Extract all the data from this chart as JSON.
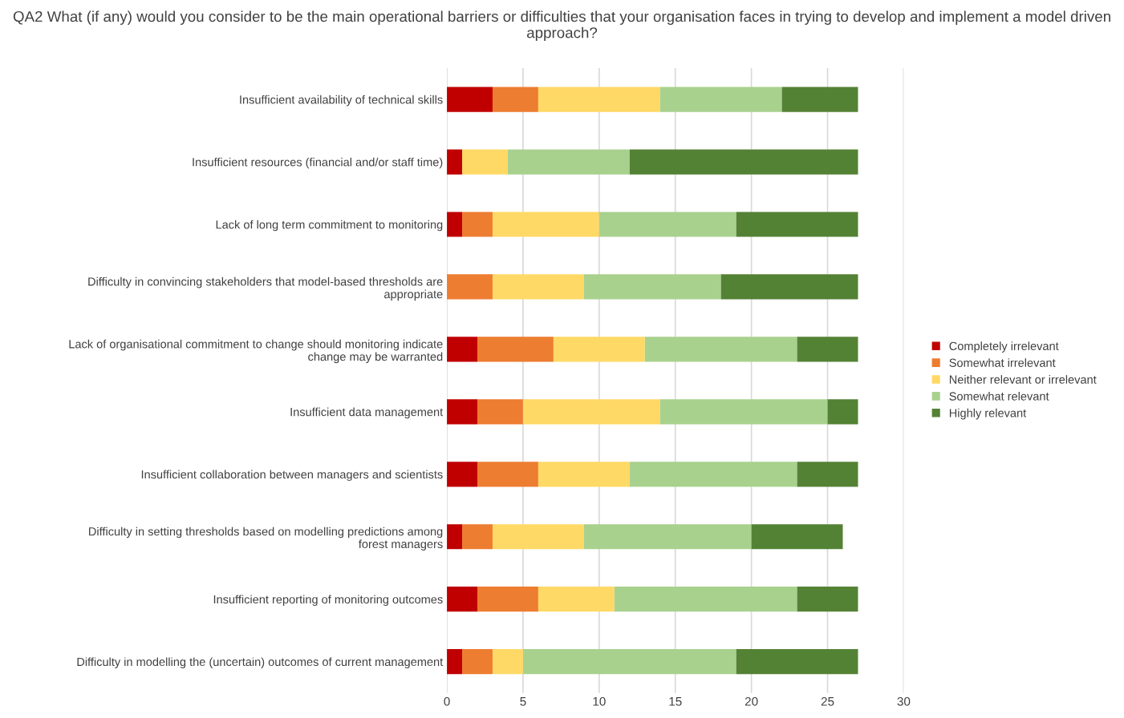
{
  "chart_data": {
    "type": "bar",
    "orientation": "horizontal",
    "stacked": true,
    "title": "QA2 What (if any) would you consider to be the main operational barriers or difficulties that your organisation faces in trying to develop and implement a model driven approach?",
    "categories": [
      "Insufficient availability of technical skills",
      "Insufficient resources (financial and/or staff time)",
      "Lack of long term commitment to monitoring",
      "Difficulty in convincing stakeholders that model-based thresholds are appropriate",
      "Lack of organisational commitment to change should monitoring indicate change may be warranted",
      "Insufficient data management",
      "Insufficient collaboration between managers and scientists",
      "Difficulty in setting thresholds based on modelling predictions among forest managers",
      "Insufficient reporting of monitoring outcomes",
      "Difficulty in modelling the (uncertain) outcomes of current management"
    ],
    "series": [
      {
        "name": "Completely irrelevant",
        "color": "#c00000",
        "values": [
          3,
          1,
          1,
          0,
          2,
          2,
          2,
          1,
          2,
          1
        ]
      },
      {
        "name": "Somewhat irrelevant",
        "color": "#ed7d31",
        "values": [
          3,
          0,
          2,
          3,
          5,
          3,
          4,
          2,
          4,
          2
        ]
      },
      {
        "name": "Neither relevant or irrelevant",
        "color": "#ffd966",
        "values": [
          8,
          3,
          7,
          6,
          6,
          9,
          6,
          6,
          5,
          2
        ]
      },
      {
        "name": "Somewhat relevant",
        "color": "#a9d18e",
        "values": [
          8,
          8,
          9,
          9,
          10,
          11,
          11,
          11,
          12,
          14
        ]
      },
      {
        "name": "Highly relevant",
        "color": "#548235",
        "values": [
          5,
          15,
          8,
          9,
          4,
          2,
          4,
          6,
          4,
          8
        ]
      }
    ],
    "xlim": [
      0,
      30
    ],
    "xticks": [
      0,
      5,
      10,
      15,
      20,
      25,
      30
    ],
    "grid": "x",
    "legend": "right"
  }
}
